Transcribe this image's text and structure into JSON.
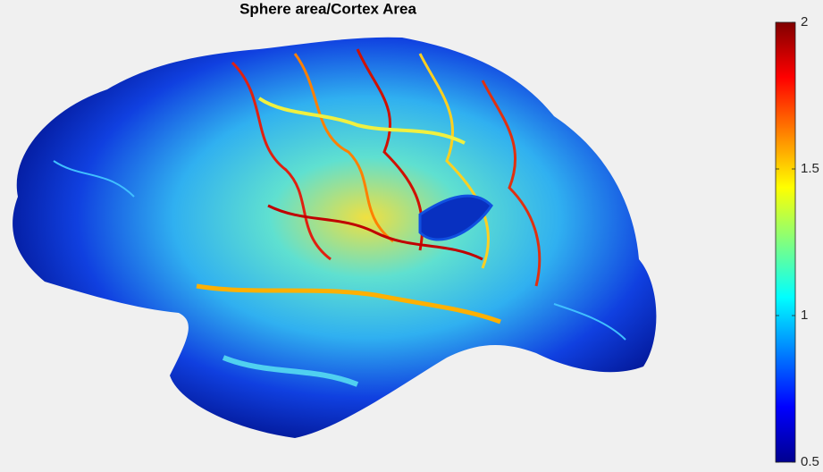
{
  "chart_data": {
    "type": "surface",
    "title": "Sphere area/Cortex Area",
    "colorbar": {
      "colormap": "jet",
      "clim": [
        0.5,
        2
      ],
      "ticks": [
        0.5,
        1,
        1.5,
        2
      ]
    }
  }
}
